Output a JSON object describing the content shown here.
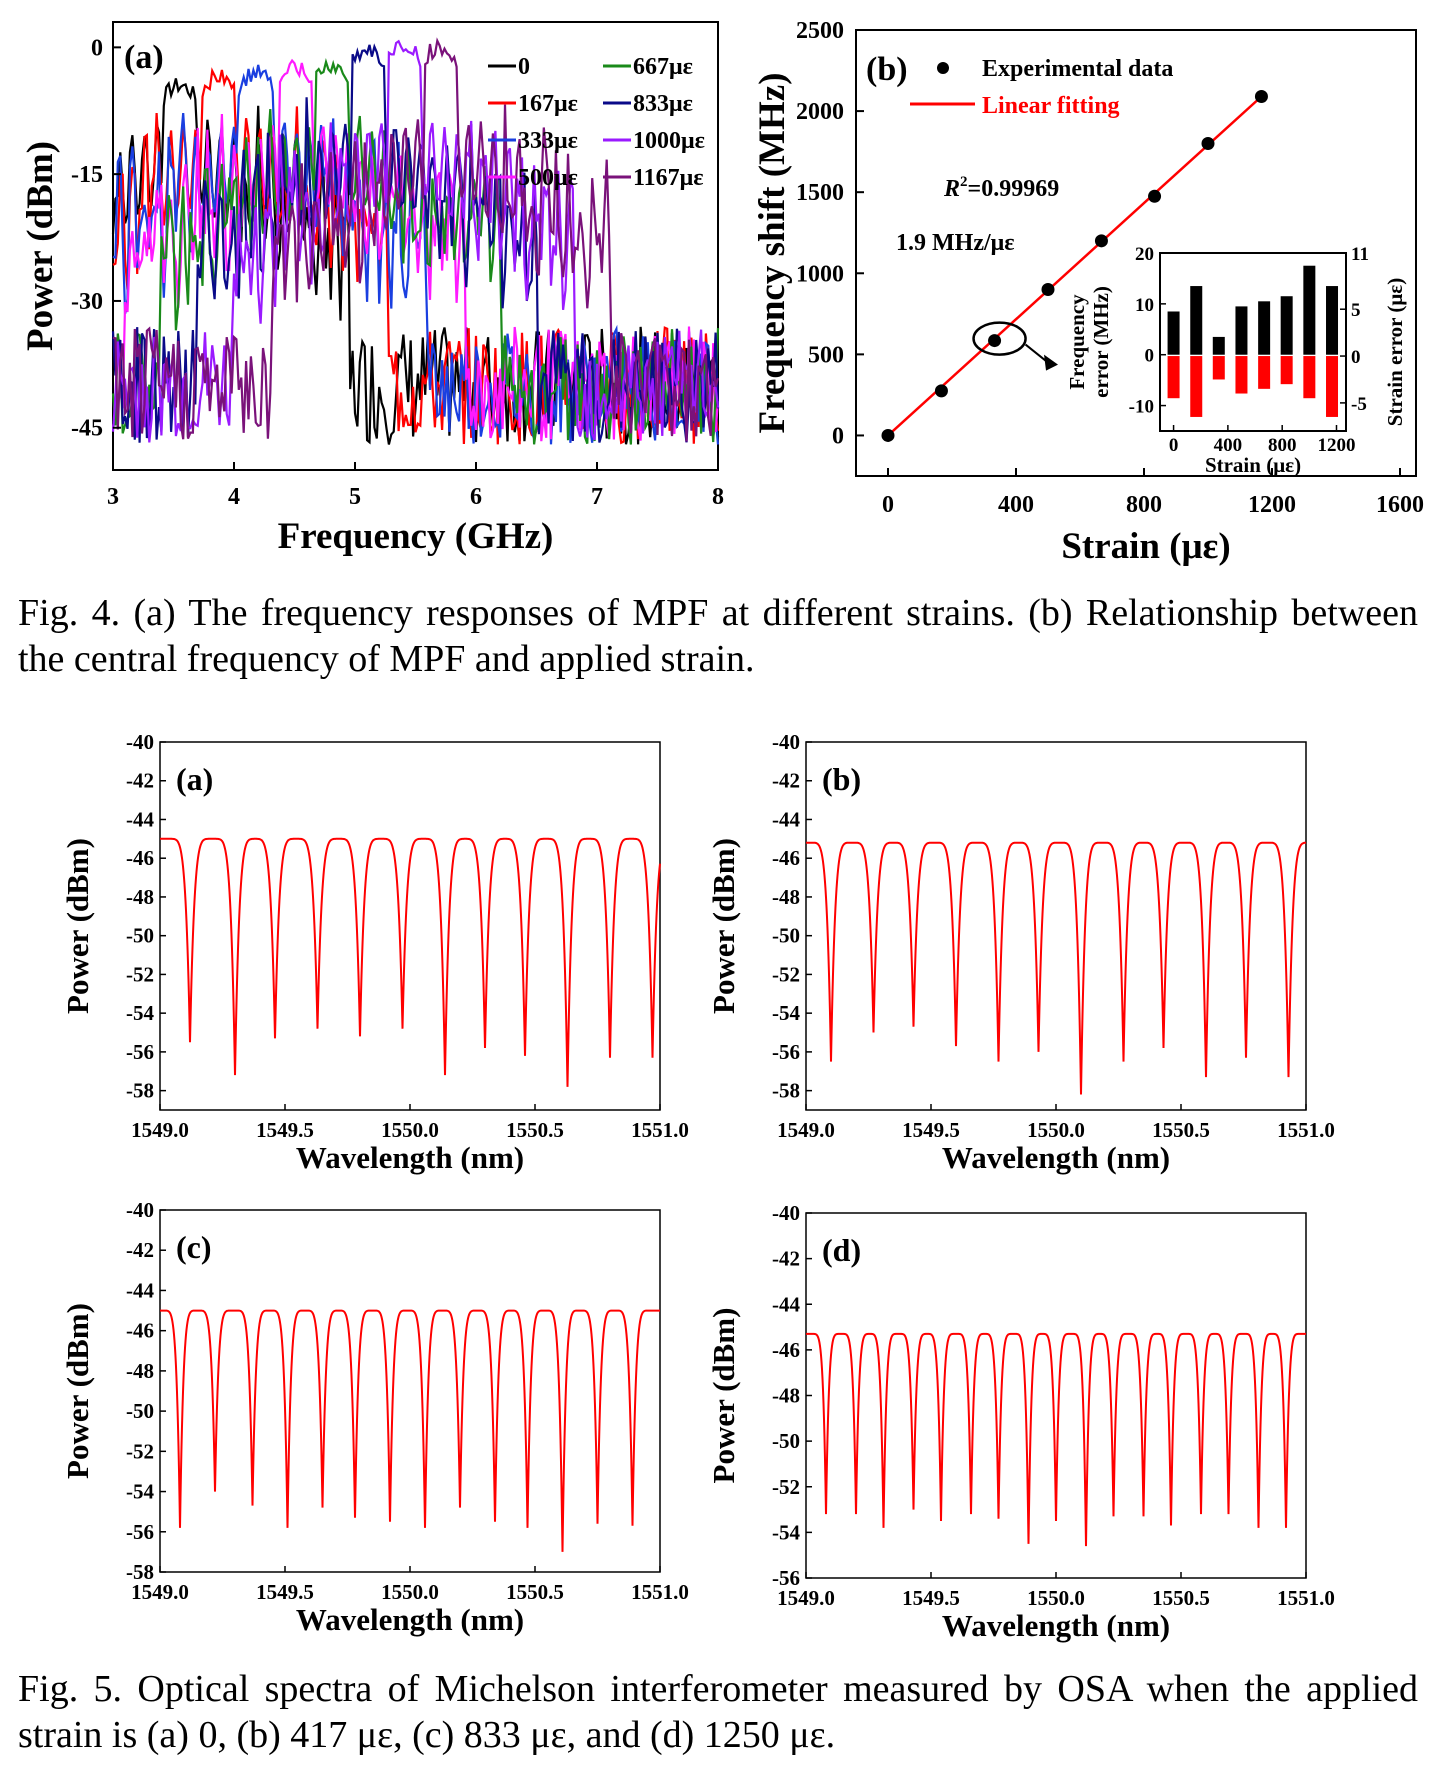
{
  "fig4": {
    "caption": "Fig. 4.    (a) The frequency responses of MPF at different strains. (b) Relationship between the central frequency of MPF and applied strain.",
    "panel_a": {
      "label": "(a)",
      "xlabel": "Frequency (GHz)",
      "ylabel": "Power (dBm)",
      "xticks": [
        "3",
        "4",
        "5",
        "6",
        "7",
        "8"
      ],
      "yticks": [
        "0",
        "-15",
        "-30",
        "-45"
      ],
      "legend": [
        {
          "name": "0",
          "color": "#000000"
        },
        {
          "name": "167με",
          "color": "#ff0000"
        },
        {
          "name": "333με",
          "color": "#1a3fe0"
        },
        {
          "name": "500με",
          "color": "#ff1aff"
        },
        {
          "name": "667με",
          "color": "#1a8a1a"
        },
        {
          "name": "833με",
          "color": "#0a0a88"
        },
        {
          "name": "1000με",
          "color": "#9a1aff"
        },
        {
          "name": "1167με",
          "color": "#7a127a"
        }
      ]
    },
    "panel_b": {
      "label": "(b)",
      "legend_points": "Experimental data",
      "legend_line": "Linear fitting",
      "r2_label": "R",
      "r2_sup": "2",
      "r2_value": "=0.99969",
      "slope_label": "1.9 MHz/με",
      "xlabel": "Strain (με)",
      "ylabel": "Frequency shift (MHz)",
      "xticks": [
        "0",
        "400",
        "800",
        "1200",
        "1600"
      ],
      "yticks": [
        "0",
        "500",
        "1000",
        "1500",
        "2000",
        "2500"
      ],
      "inset": {
        "ylabel_left_1": "Frequency",
        "ylabel_left_2": "error (MHz)",
        "ylabel_right": "Strain error (με)",
        "xlabel": "Strain (με)",
        "xticks": [
          "0",
          "400",
          "800",
          "1200"
        ],
        "yticks_left": [
          "20",
          "10",
          "0",
          "-10"
        ],
        "yticks_right": [
          "11",
          "5",
          "0",
          "-5"
        ]
      }
    }
  },
  "fig5": {
    "caption": "Fig. 5.   Optical spectra of Michelson interferometer measured by OSA when the applied strain is (a) 0, (b) 417 με, (c) 833 με, and (d) 1250 με.",
    "xlabel": "Wavelength (nm)",
    "ylabel": "Power (dBm)",
    "xticks": [
      "1549.0",
      "1549.5",
      "1550.0",
      "1550.5",
      "1551.0"
    ],
    "panels": [
      {
        "label": "(a)",
        "yticks": [
          "-40",
          "-42",
          "-44",
          "-46",
          "-48",
          "-50",
          "-52",
          "-54",
          "-56",
          "-58"
        ]
      },
      {
        "label": "(b)",
        "yticks": [
          "-40",
          "-42",
          "-44",
          "-46",
          "-48",
          "-50",
          "-52",
          "-54",
          "-56",
          "-58"
        ]
      },
      {
        "label": "(c)",
        "yticks": [
          "-40",
          "-42",
          "-44",
          "-46",
          "-48",
          "-50",
          "-52",
          "-54",
          "-56",
          "-58"
        ]
      },
      {
        "label": "(d)",
        "yticks": [
          "-40",
          "-42",
          "-44",
          "-46",
          "-48",
          "-50",
          "-52",
          "-54",
          "-56"
        ]
      }
    ]
  },
  "chart_data": [
    {
      "type": "line",
      "panel": "Fig. 4(a)",
      "xlabel": "Frequency (GHz)",
      "ylabel": "Power (dBm)",
      "xlim": [
        3,
        8
      ],
      "ylim": [
        -50,
        3
      ],
      "series": [
        {
          "name": "0",
          "peak_x": 3.55,
          "peak_y": -4.5
        },
        {
          "name": "167με",
          "peak_x": 3.87,
          "peak_y": -3.5
        },
        {
          "name": "333με",
          "peak_x": 4.18,
          "peak_y": -3.0
        },
        {
          "name": "500με",
          "peak_x": 4.5,
          "peak_y": -2.5
        },
        {
          "name": "667με",
          "peak_x": 4.8,
          "peak_y": -2.0
        },
        {
          "name": "833με",
          "peak_x": 5.1,
          "peak_y": -0.5
        },
        {
          "name": "1000με",
          "peak_x": 5.4,
          "peak_y": 0.5
        },
        {
          "name": "1167με",
          "peak_x": 5.7,
          "peak_y": 0.0
        }
      ]
    },
    {
      "type": "scatter",
      "panel": "Fig. 4(b)",
      "xlabel": "Strain (με)",
      "ylabel": "Frequency shift (MHz)",
      "xlim": [
        -100,
        1650
      ],
      "ylim": [
        -250,
        2500
      ],
      "series": [
        {
          "name": "Experimental data",
          "x": [
            0,
            167,
            333,
            500,
            667,
            833,
            1000,
            1167
          ],
          "y": [
            0,
            275,
            585,
            900,
            1200,
            1475,
            1800,
            2090
          ]
        },
        {
          "name": "Linear fitting",
          "x": [
            0,
            1167
          ],
          "y": [
            0,
            2090
          ]
        }
      ]
    },
    {
      "type": "bar",
      "panel": "Fig. 4(b) inset",
      "xlabel": "Strain (με)",
      "xlim": [
        -100,
        1270
      ],
      "categories": [
        0,
        167,
        333,
        500,
        667,
        833,
        1000,
        1167
      ],
      "series": [
        {
          "name": "Frequency error (MHz)",
          "values": [
            8.5,
            13.5,
            3.5,
            9.5,
            10.5,
            11.5,
            17.5,
            13.5
          ]
        },
        {
          "name": "Strain error (με)",
          "values": [
            -4.5,
            -6.5,
            -2.5,
            -4,
            -3.5,
            -3,
            -4.5,
            -6.5
          ]
        }
      ],
      "ylim_left": [
        -15,
        20
      ],
      "ylim_right": [
        -8,
        11
      ]
    },
    {
      "type": "line",
      "panel": "Fig. 5(a)",
      "xlabel": "Wavelength (nm)",
      "ylabel": "Power (dBm)",
      "xlim": [
        1549,
        1551
      ],
      "ylim": [
        -59,
        -40
      ],
      "period_nm": 0.17,
      "peak_dbm": -45,
      "minima_x": [
        1549.12,
        1549.3,
        1549.46,
        1549.63,
        1549.8,
        1549.97,
        1550.14,
        1550.3,
        1550.46,
        1550.63,
        1550.8,
        1550.97
      ],
      "minima_y": [
        -55.5,
        -57.2,
        -55.3,
        -54.8,
        -55.2,
        -54.8,
        -57.2,
        -55.8,
        -56.2,
        -57.8,
        -56.3,
        -56.3
      ]
    },
    {
      "type": "line",
      "panel": "Fig. 5(b)",
      "xlabel": "Wavelength (nm)",
      "ylabel": "Power (dBm)",
      "xlim": [
        1549,
        1551
      ],
      "ylim": [
        -59,
        -40
      ],
      "period_nm": 0.165,
      "peak_dbm": -45.2,
      "minima_x": [
        1549.1,
        1549.27,
        1549.43,
        1549.6,
        1549.77,
        1549.93,
        1550.1,
        1550.27,
        1550.43,
        1550.6,
        1550.76,
        1550.93
      ],
      "minima_y": [
        -56.5,
        -55,
        -54.7,
        -55.7,
        -56.5,
        -56,
        -58.2,
        -56.5,
        -55.8,
        -57.3,
        -56.3,
        -57.3
      ]
    },
    {
      "type": "line",
      "panel": "Fig. 5(c)",
      "xlabel": "Wavelength (nm)",
      "ylabel": "Power (dBm)",
      "xlim": [
        1549,
        1551
      ],
      "ylim": [
        -58,
        -40
      ],
      "period_nm": 0.135,
      "peak_dbm": -45,
      "minima_x": [
        1549.08,
        1549.22,
        1549.37,
        1549.51,
        1549.65,
        1549.78,
        1549.92,
        1550.06,
        1550.2,
        1550.34,
        1550.47,
        1550.61,
        1550.75,
        1550.89
      ],
      "minima_y": [
        -55.8,
        -54,
        -54.7,
        -55.8,
        -54.8,
        -55.3,
        -55.5,
        -55.8,
        -54.8,
        -55.5,
        -55.8,
        -57,
        -55.6,
        -55.7
      ]
    },
    {
      "type": "line",
      "panel": "Fig. 5(d)",
      "xlabel": "Wavelength (nm)",
      "ylabel": "Power (dBm)",
      "xlim": [
        1549,
        1551
      ],
      "ylim": [
        -56,
        -40
      ],
      "period_nm": 0.115,
      "peak_dbm": -45.3,
      "minima_x": [
        1549.08,
        1549.2,
        1549.31,
        1549.43,
        1549.54,
        1549.66,
        1549.77,
        1549.89,
        1550.0,
        1550.12,
        1550.23,
        1550.35,
        1550.46,
        1550.58,
        1550.69,
        1550.81,
        1550.92
      ],
      "minima_y": [
        -53.2,
        -53.2,
        -53.8,
        -53,
        -53.5,
        -53.2,
        -53.4,
        -54.5,
        -53.5,
        -54.6,
        -53.3,
        -53.3,
        -53.7,
        -53.2,
        -53.2,
        -53.8,
        -53.8
      ]
    }
  ]
}
